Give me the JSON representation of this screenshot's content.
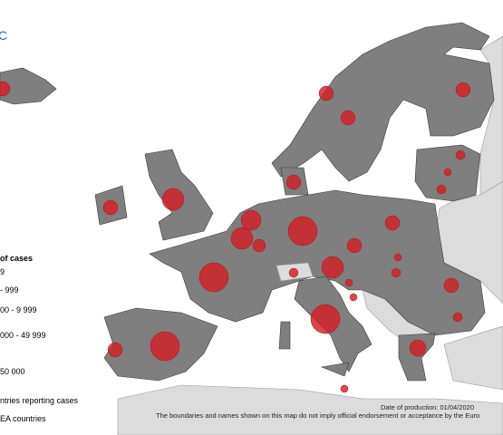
{
  "header": {
    "logo_text": "C"
  },
  "legend": {
    "title": "of cases",
    "items": [
      "9",
      "- 999",
      "00 - 9 999",
      "000 - 49 999",
      "50 000"
    ],
    "reporting": "ntries reporting cases",
    "eea": "EA countries"
  },
  "footer": {
    "date": "Date of production: 01/04/2020",
    "disclaimer": "The boundaries and names shown on this map do not imply official endorsement or acceptance by the Euro"
  }
}
